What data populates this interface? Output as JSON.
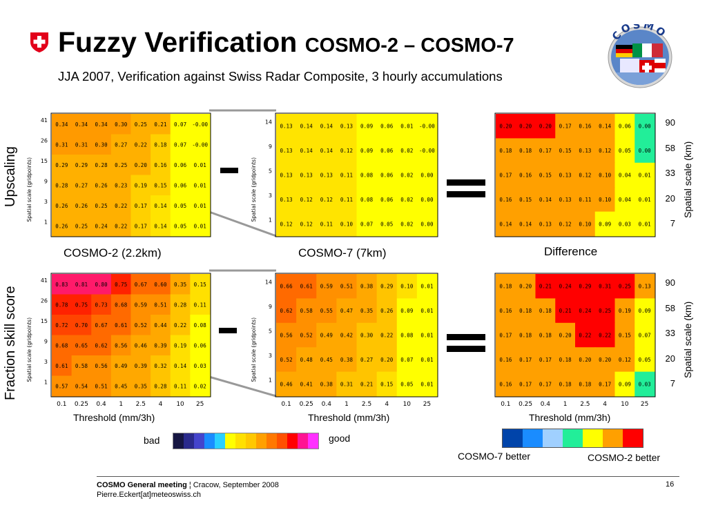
{
  "header": {
    "title": "Fuzzy Verification",
    "title_suffix": "COSMO-2 – COSMO-7",
    "subtitle": "JJA 2007, Verification against Swiss Radar Composite, 3 hourly accumulations",
    "logo_text": "COSMO"
  },
  "row_labels": {
    "top": "Upscaling",
    "bottom": "Fraction skill score"
  },
  "operators": {
    "minus": "-",
    "equals": "="
  },
  "panel_titles": {
    "cosmo2": "COSMO-2 (2.2km)",
    "cosmo7": "COSMO-7 (7km)",
    "difference": "Difference"
  },
  "axis": {
    "ylabel": "Spatial scale (gridpoints)",
    "xlabel": "Threshold (mm/3h)",
    "right_label": "Spatial scale (km)",
    "right_ticks": [
      "90",
      "58",
      "33",
      "20",
      "7"
    ],
    "x_ticks": [
      "0.1",
      "0.25",
      "0.4",
      "1",
      "2.5",
      "4",
      "10",
      "25"
    ],
    "y_ticks_cosmo2": [
      "41",
      "26",
      "15",
      "9",
      "3",
      "1"
    ],
    "y_ticks_cosmo7": [
      "14",
      "9",
      "5",
      "3",
      "1"
    ]
  },
  "legends": {
    "skill": {
      "bad_label": "bad",
      "good_label": "good",
      "colors": [
        "#161642",
        "#2a2a8c",
        "#4444cc",
        "#1a8cff",
        "#2ad0ff",
        "#ffff00",
        "#ffe000",
        "#ffc800",
        "#ffa000",
        "#ff7800",
        "#ff5000",
        "#ff0000",
        "#ff1493",
        "#ff30ff"
      ]
    },
    "difference": {
      "left_label": "COSMO-7 better",
      "right_label": "COSMO-2 better",
      "colors": [
        "#0044aa",
        "#1a8cff",
        "#a0d0ff",
        "#22ee99",
        "#ffff00",
        "#ffa000",
        "#ff0000"
      ]
    }
  },
  "chart_data": [
    {
      "type": "heatmap",
      "title": "COSMO-2 (2.2km)",
      "metric": "Upscaling",
      "x": [
        "0.1",
        "0.25",
        "0.4",
        "1",
        "2.5",
        "4",
        "10",
        "25"
      ],
      "y": [
        "41",
        "26",
        "15",
        "9",
        "3",
        "1"
      ],
      "values": [
        [
          "0.34",
          "0.34",
          "0.34",
          "0.30",
          "0.25",
          "0.21",
          "0.07",
          "-0.00"
        ],
        [
          "0.31",
          "0.31",
          "0.30",
          "0.27",
          "0.22",
          "0.18",
          "0.07",
          "-0.00"
        ],
        [
          "0.29",
          "0.29",
          "0.28",
          "0.25",
          "0.20",
          "0.16",
          "0.06",
          "0.01"
        ],
        [
          "0.28",
          "0.27",
          "0.26",
          "0.23",
          "0.19",
          "0.15",
          "0.06",
          "0.01"
        ],
        [
          "0.26",
          "0.26",
          "0.25",
          "0.22",
          "0.17",
          "0.14",
          "0.05",
          "0.01"
        ],
        [
          "0.26",
          "0.25",
          "0.24",
          "0.22",
          "0.17",
          "0.14",
          "0.05",
          "0.01"
        ]
      ]
    },
    {
      "type": "heatmap",
      "title": "COSMO-7 (7km)",
      "metric": "Upscaling",
      "x": [
        "0.1",
        "0.25",
        "0.4",
        "1",
        "2.5",
        "4",
        "10",
        "25"
      ],
      "y": [
        "14",
        "9",
        "5",
        "3",
        "1"
      ],
      "values": [
        [
          "0.13",
          "0.14",
          "0.14",
          "0.13",
          "0.09",
          "0.06",
          "0.01",
          "-0.00"
        ],
        [
          "0.13",
          "0.14",
          "0.14",
          "0.12",
          "0.09",
          "0.06",
          "0.02",
          "-0.00"
        ],
        [
          "0.13",
          "0.13",
          "0.13",
          "0.11",
          "0.08",
          "0.06",
          "0.02",
          "0.00"
        ],
        [
          "0.13",
          "0.12",
          "0.12",
          "0.11",
          "0.08",
          "0.06",
          "0.02",
          "0.00"
        ],
        [
          "0.12",
          "0.12",
          "0.11",
          "0.10",
          "0.07",
          "0.05",
          "0.02",
          "0.00"
        ]
      ]
    },
    {
      "type": "heatmap",
      "title": "Difference",
      "metric": "Upscaling",
      "x": [
        "0.1",
        "0.25",
        "0.4",
        "1",
        "2.5",
        "4",
        "10",
        "25"
      ],
      "y": [
        "90",
        "58",
        "33",
        "20",
        "7"
      ],
      "values": [
        [
          "0.20",
          "0.20",
          "0.20",
          "0.17",
          "0.16",
          "0.14",
          "0.06",
          "0.00"
        ],
        [
          "0.18",
          "0.18",
          "0.17",
          "0.15",
          "0.13",
          "0.12",
          "0.05",
          "0.00"
        ],
        [
          "0.17",
          "0.16",
          "0.15",
          "0.13",
          "0.12",
          "0.10",
          "0.04",
          "0.01"
        ],
        [
          "0.16",
          "0.15",
          "0.14",
          "0.13",
          "0.11",
          "0.10",
          "0.04",
          "0.01"
        ],
        [
          "0.14",
          "0.14",
          "0.13",
          "0.12",
          "0.10",
          "0.09",
          "0.03",
          "0.01"
        ]
      ]
    },
    {
      "type": "heatmap",
      "title": "COSMO-2 (2.2km)",
      "metric": "Fraction skill score",
      "x": [
        "0.1",
        "0.25",
        "0.4",
        "1",
        "2.5",
        "4",
        "10",
        "25"
      ],
      "y": [
        "41",
        "26",
        "15",
        "9",
        "3",
        "1"
      ],
      "values": [
        [
          "0.83",
          "0.81",
          "0.80",
          "0.75",
          "0.67",
          "0.60",
          "0.35",
          "0.15"
        ],
        [
          "0.78",
          "0.75",
          "0.73",
          "0.68",
          "0.59",
          "0.51",
          "0.28",
          "0.11"
        ],
        [
          "0.72",
          "0.70",
          "0.67",
          "0.61",
          "0.52",
          "0.44",
          "0.22",
          "0.08"
        ],
        [
          "0.68",
          "0.65",
          "0.62",
          "0.56",
          "0.46",
          "0.39",
          "0.19",
          "0.06"
        ],
        [
          "0.61",
          "0.58",
          "0.56",
          "0.49",
          "0.39",
          "0.32",
          "0.14",
          "0.03"
        ],
        [
          "0.57",
          "0.54",
          "0.51",
          "0.45",
          "0.35",
          "0.28",
          "0.11",
          "0.02"
        ]
      ]
    },
    {
      "type": "heatmap",
      "title": "COSMO-7 (7km)",
      "metric": "Fraction skill score",
      "x": [
        "0.1",
        "0.25",
        "0.4",
        "1",
        "2.5",
        "4",
        "10",
        "25"
      ],
      "y": [
        "14",
        "9",
        "5",
        "3",
        "1"
      ],
      "values": [
        [
          "0.66",
          "0.61",
          "0.59",
          "0.51",
          "0.38",
          "0.29",
          "0.10",
          "0.01"
        ],
        [
          "0.62",
          "0.58",
          "0.55",
          "0.47",
          "0.35",
          "0.26",
          "0.09",
          "0.01"
        ],
        [
          "0.56",
          "0.52",
          "0.49",
          "0.42",
          "0.30",
          "0.22",
          "0.08",
          "0.01"
        ],
        [
          "0.52",
          "0.48",
          "0.45",
          "0.38",
          "0.27",
          "0.20",
          "0.07",
          "0.01"
        ],
        [
          "0.46",
          "0.41",
          "0.38",
          "0.31",
          "0.21",
          "0.15",
          "0.05",
          "0.01"
        ]
      ]
    },
    {
      "type": "heatmap",
      "title": "Difference",
      "metric": "Fraction skill score",
      "x": [
        "0.1",
        "0.25",
        "0.4",
        "1",
        "2.5",
        "4",
        "10",
        "25"
      ],
      "y": [
        "90",
        "58",
        "33",
        "20",
        "7"
      ],
      "values": [
        [
          "0.18",
          "0.20",
          "0.21",
          "0.24",
          "0.29",
          "0.31",
          "0.25",
          "0.13"
        ],
        [
          "0.16",
          "0.18",
          "0.18",
          "0.21",
          "0.24",
          "0.25",
          "0.19",
          "0.09"
        ],
        [
          "0.17",
          "0.18",
          "0.18",
          "0.20",
          "0.22",
          "0.22",
          "0.15",
          "0.07"
        ],
        [
          "0.16",
          "0.17",
          "0.17",
          "0.18",
          "0.20",
          "0.20",
          "0.12",
          "0.05"
        ],
        [
          "0.16",
          "0.17",
          "0.17",
          "0.18",
          "0.18",
          "0.17",
          "0.09",
          "0.03"
        ]
      ]
    }
  ],
  "footer": {
    "meeting_bold": "COSMO General meeting",
    "meeting_rest": " ¦ Cracow, September 2008",
    "email": "Pierre.Eckert[at]meteoswiss.ch",
    "page": "16"
  }
}
